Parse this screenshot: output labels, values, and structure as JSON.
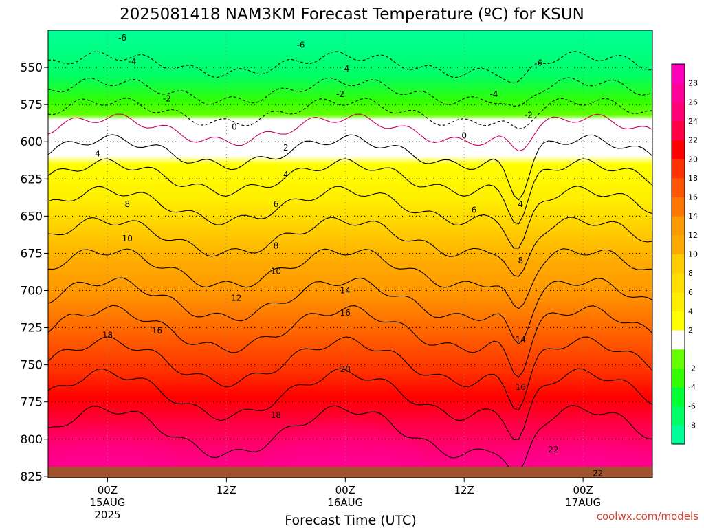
{
  "chart_data": {
    "type": "heatmap",
    "title": "2025081418 NAM3KM Forecast Temperature (ºC) for KSUN",
    "xlabel": "Forecast Time (UTC)",
    "ylabel": "",
    "y_ticks": [
      "550",
      "575",
      "600",
      "625",
      "650",
      "675",
      "700",
      "725",
      "750",
      "775",
      "800",
      "825"
    ],
    "x_ticks": [
      {
        "line1": "00Z",
        "line2": "15AUG",
        "line3": "2025"
      },
      {
        "line1": "12Z",
        "line2": "",
        "line3": ""
      },
      {
        "line1": "00Z",
        "line2": "16AUG",
        "line3": ""
      },
      {
        "line1": "12Z",
        "line2": "",
        "line3": ""
      },
      {
        "line1": "00Z",
        "line2": "17AUG",
        "line3": ""
      }
    ],
    "pressure_range_hpa": [
      525,
      826
    ],
    "time_range_hours_from_15AUG00Z": [
      -6,
      55
    ],
    "colorbar": {
      "levels": [
        "-8",
        "-6",
        "-4",
        "-2",
        "2",
        "4",
        "6",
        "8",
        "10",
        "12",
        "14",
        "16",
        "18",
        "20",
        "22",
        "24",
        "26",
        "28"
      ],
      "colors": [
        "#00ff99",
        "#00ff66",
        "#00ff33",
        "#33ff00",
        "#66ff00",
        "#ffffff",
        "#ffff00",
        "#ffee00",
        "#ffdd00",
        "#ffcc00",
        "#ffaa00",
        "#ff9900",
        "#ff7700",
        "#ff5500",
        "#ff3300",
        "#ff0000",
        "#ff0044",
        "#ff0077",
        "#ff0099",
        "#ff00bb"
      ]
    },
    "contour_labels": [
      {
        "text": "-6",
        "t": 1.5,
        "p": 530
      },
      {
        "text": "-6",
        "t": 19.5,
        "p": 535
      },
      {
        "text": "-6",
        "t": 43.5,
        "p": 547
      },
      {
        "text": "-4",
        "t": 2.5,
        "p": 546
      },
      {
        "text": "-4",
        "t": 24.0,
        "p": 551
      },
      {
        "text": "-4",
        "t": 39.0,
        "p": 568
      },
      {
        "text": "-2",
        "t": 6.0,
        "p": 571
      },
      {
        "text": "-2",
        "t": 23.5,
        "p": 568
      },
      {
        "text": "-2",
        "t": 42.5,
        "p": 582
      },
      {
        "text": "0",
        "t": 12.8,
        "p": 590
      },
      {
        "text": "0",
        "t": 36.0,
        "p": 596
      },
      {
        "text": "4",
        "t": -1.0,
        "p": 608
      },
      {
        "text": "2",
        "t": 18.0,
        "p": 604
      },
      {
        "text": "4",
        "t": 18.0,
        "p": 622
      },
      {
        "text": "6",
        "t": 17.0,
        "p": 642
      },
      {
        "text": "6",
        "t": 37.0,
        "p": 646
      },
      {
        "text": "4",
        "t": 41.7,
        "p": 642
      },
      {
        "text": "8",
        "t": 2.0,
        "p": 642
      },
      {
        "text": "8",
        "t": 17.0,
        "p": 670
      },
      {
        "text": "8",
        "t": 41.7,
        "p": 680
      },
      {
        "text": "10",
        "t": 2.0,
        "p": 665
      },
      {
        "text": "10",
        "t": 17.0,
        "p": 687
      },
      {
        "text": "12",
        "t": 13.0,
        "p": 705
      },
      {
        "text": "14",
        "t": 24.0,
        "p": 700
      },
      {
        "text": "14",
        "t": 41.7,
        "p": 733
      },
      {
        "text": "16",
        "t": 5.0,
        "p": 727
      },
      {
        "text": "16",
        "t": 24.0,
        "p": 715
      },
      {
        "text": "16",
        "t": 41.7,
        "p": 765
      },
      {
        "text": "18",
        "t": 0.0,
        "p": 730
      },
      {
        "text": "18",
        "t": 17.0,
        "p": 784
      },
      {
        "text": "20",
        "t": 24.0,
        "p": 753
      },
      {
        "text": "22",
        "t": 45.0,
        "p": 807
      },
      {
        "text": "22",
        "t": 49.5,
        "p": 823
      }
    ]
  },
  "credit": "coolwx.com/models"
}
